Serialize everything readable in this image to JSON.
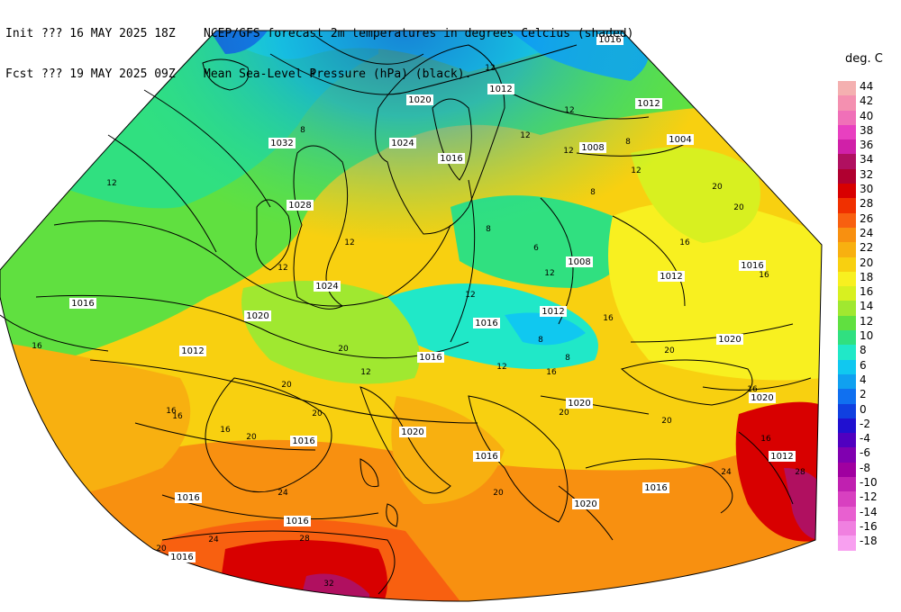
{
  "header": {
    "init_label": "Init",
    "init_value": "??? 16 MAY 2025 18Z",
    "init_desc": "NCEP/GFS forecast 2m temperatures in degrees Celcius (shaded)",
    "fcst_label": "Fcst",
    "fcst_value": "??? 19 MAY 2025 09Z",
    "fcst_desc": "Mean Sea-Level Pressure (hPa) (black)."
  },
  "legend": {
    "title": "deg. C",
    "items": [
      {
        "label": "44",
        "color": "#f4b0b0"
      },
      {
        "label": "42",
        "color": "#f490b0"
      },
      {
        "label": "40",
        "color": "#f070b8"
      },
      {
        "label": "38",
        "color": "#e840c0"
      },
      {
        "label": "36",
        "color": "#d020a8"
      },
      {
        "label": "34",
        "color": "#b01060"
      },
      {
        "label": "32",
        "color": "#b00030"
      },
      {
        "label": "30",
        "color": "#d80000"
      },
      {
        "label": "28",
        "color": "#f03000"
      },
      {
        "label": "26",
        "color": "#f86010"
      },
      {
        "label": "24",
        "color": "#f89010"
      },
      {
        "label": "22",
        "color": "#f8b010"
      },
      {
        "label": "20",
        "color": "#f8d010"
      },
      {
        "label": "18",
        "color": "#f8f020"
      },
      {
        "label": "16",
        "color": "#d8f020"
      },
      {
        "label": "14",
        "color": "#a0e830"
      },
      {
        "label": "12",
        "color": "#60e040"
      },
      {
        "label": "10",
        "color": "#30e080"
      },
      {
        "label": "8",
        "color": "#20e8c8"
      },
      {
        "label": "6",
        "color": "#10c8f0"
      },
      {
        "label": "4",
        "color": "#10a0f0"
      },
      {
        "label": "2",
        "color": "#1070f0"
      },
      {
        "label": "0",
        "color": "#1040e0"
      },
      {
        "label": "-2",
        "color": "#2010d0"
      },
      {
        "label": "-4",
        "color": "#5000c0"
      },
      {
        "label": "-6",
        "color": "#8000b0"
      },
      {
        "label": "-8",
        "color": "#a000a0"
      },
      {
        "label": "-10",
        "color": "#c020b0"
      },
      {
        "label": "-12",
        "color": "#d840c0"
      },
      {
        "label": "-14",
        "color": "#e860d0"
      },
      {
        "label": "-16",
        "color": "#f080e0"
      },
      {
        "label": "-18",
        "color": "#f8a0f0"
      }
    ]
  },
  "map": {
    "temperature_labels": [
      "4",
      "8",
      "12",
      "12",
      "12",
      "8",
      "12",
      "12",
      "8",
      "12",
      "16",
      "12",
      "16",
      "16",
      "20",
      "20",
      "16",
      "20",
      "20",
      "20",
      "20",
      "24",
      "24",
      "28",
      "32",
      "20",
      "12",
      "16",
      "12",
      "8",
      "12",
      "8",
      "12",
      "16",
      "20",
      "20",
      "16",
      "20",
      "24",
      "28",
      "20",
      "16",
      "12",
      "8",
      "6",
      "16",
      "16"
    ],
    "pressure_labels": [
      "1016",
      "1012",
      "1012",
      "1020",
      "1004",
      "1032",
      "1024",
      "1016",
      "1008",
      "1028",
      "1008",
      "1012",
      "1016",
      "1024",
      "1016",
      "1020",
      "1012",
      "1016",
      "1020",
      "1012",
      "1016",
      "1020",
      "1020",
      "1016",
      "1020",
      "1012",
      "1016",
      "1016",
      "1016",
      "1016",
      "1020",
      "1016"
    ]
  }
}
